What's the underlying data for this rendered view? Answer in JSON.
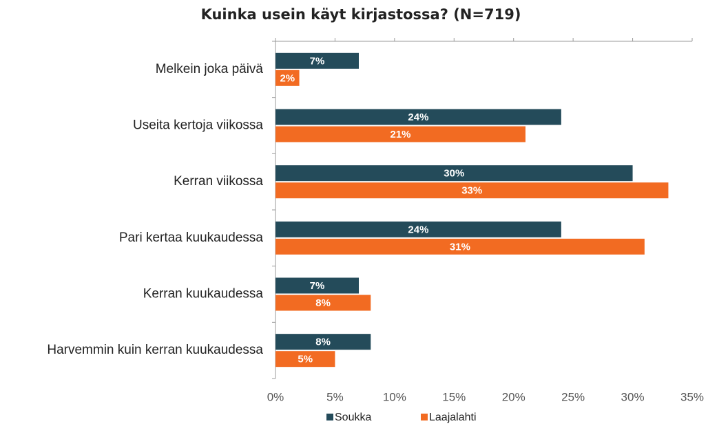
{
  "chart_data": {
    "type": "bar",
    "orientation": "horizontal",
    "title": "Kuinka usein käyt kirjastossa? (N=719)",
    "categories": [
      "Melkein joka päivä",
      "Useita kertoja viikossa",
      "Kerran viikossa",
      "Pari kertaa kuukaudessa",
      "Kerran kuukaudessa",
      "Harvemmin kuin kerran kuukaudessa"
    ],
    "series": [
      {
        "name": "Soukka",
        "color": "#244b5a",
        "values": [
          7,
          24,
          30,
          24,
          7,
          8
        ],
        "value_labels": [
          "7%",
          "24%",
          "30%",
          "24%",
          "7%",
          "8%"
        ]
      },
      {
        "name": "Laajalahti",
        "color": "#f26b22",
        "values": [
          2,
          21,
          33,
          31,
          8,
          5
        ],
        "value_labels": [
          "2%",
          "21%",
          "33%",
          "31%",
          "8%",
          "5%"
        ]
      }
    ],
    "xlim": [
      0,
      35
    ],
    "xticks": [
      {
        "value": 0,
        "label": "0%"
      },
      {
        "value": 5,
        "label": "5%"
      },
      {
        "value": 10,
        "label": "10%"
      },
      {
        "value": 15,
        "label": "15%"
      },
      {
        "value": 20,
        "label": "20%"
      },
      {
        "value": 25,
        "label": "25%"
      },
      {
        "value": 30,
        "label": "30%"
      },
      {
        "value": 35,
        "label": "35%"
      }
    ],
    "legend": "bottom"
  }
}
